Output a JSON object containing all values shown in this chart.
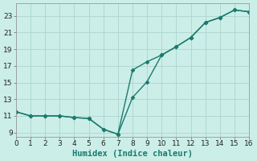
{
  "xlabel": "Humidex (Indice chaleur)",
  "background_color": "#cceee8",
  "grid_color": "#b0d8d0",
  "line_color": "#1a7a6e",
  "line1_x": [
    0,
    1,
    2,
    3,
    4,
    5,
    6,
    7,
    8,
    9,
    10,
    11,
    12,
    13,
    14,
    15,
    16
  ],
  "line1_y": [
    11.5,
    11.0,
    11.0,
    11.0,
    10.8,
    10.7,
    9.4,
    8.8,
    13.2,
    15.1,
    18.3,
    19.3,
    20.4,
    22.2,
    22.8,
    23.7,
    23.5
  ],
  "line2_x": [
    0,
    1,
    2,
    3,
    4,
    5,
    6,
    7,
    8,
    9,
    10,
    11,
    12,
    13,
    14,
    15,
    16
  ],
  "line2_y": [
    11.5,
    11.0,
    11.0,
    11.0,
    10.8,
    10.7,
    9.4,
    8.8,
    16.5,
    17.5,
    18.3,
    19.3,
    20.4,
    22.2,
    22.8,
    23.7,
    23.5
  ],
  "xlim": [
    0,
    16
  ],
  "ylim": [
    8.5,
    24.5
  ],
  "xticks": [
    0,
    1,
    2,
    3,
    4,
    5,
    6,
    7,
    8,
    9,
    10,
    11,
    12,
    13,
    14,
    15,
    16
  ],
  "yticks": [
    9,
    11,
    13,
    15,
    17,
    19,
    21,
    23
  ],
  "marker": "D",
  "markersize": 2.5,
  "linewidth": 1.0,
  "tick_fontsize": 6.5,
  "xlabel_fontsize": 7.5
}
